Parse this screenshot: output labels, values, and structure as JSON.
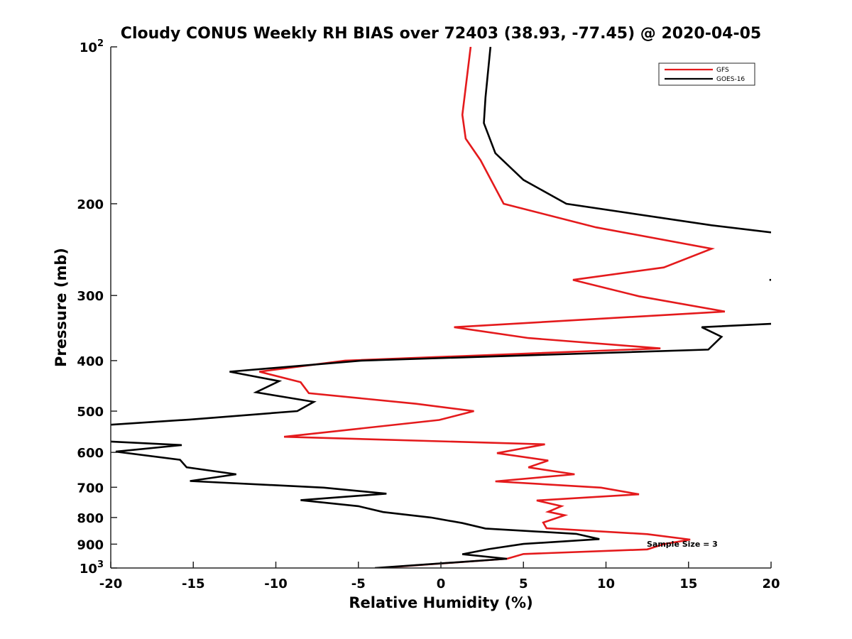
{
  "chart_data": {
    "type": "line",
    "title": "Cloudy CONUS Weekly RH BIAS over 72403 (38.93, -77.45) @ 2020-04-05",
    "xlabel": "Relative Humidity (%)",
    "ylabel": "Pressure (mb)",
    "xlim": [
      -20,
      20
    ],
    "ylim": [
      100,
      1000
    ],
    "yscale": "log",
    "y_reversed": true,
    "grid": false,
    "legend_position": "top-right",
    "x_ticks": [
      -20,
      -15,
      -10,
      -5,
      0,
      5,
      10,
      15,
      20
    ],
    "x_tick_labels": [
      "-20",
      "-15",
      "-10",
      "-5",
      "0",
      "5",
      "10",
      "15",
      "20"
    ],
    "y_ticks": [
      100,
      200,
      300,
      400,
      500,
      600,
      700,
      800,
      900,
      1000
    ],
    "y_tick_labels": [
      {
        "base": "10",
        "exp": "2"
      },
      {
        "base": "200",
        "exp": ""
      },
      {
        "base": "300",
        "exp": ""
      },
      {
        "base": "400",
        "exp": ""
      },
      {
        "base": "500",
        "exp": ""
      },
      {
        "base": "600",
        "exp": ""
      },
      {
        "base": "700",
        "exp": ""
      },
      {
        "base": "800",
        "exp": ""
      },
      {
        "base": "900",
        "exp": ""
      },
      {
        "base": "10",
        "exp": "3"
      }
    ],
    "annotation": "Sample Size = 3",
    "series": [
      {
        "name": "GFS",
        "color": "#e41a1c",
        "points": [
          [
            1.8,
            100
          ],
          [
            1.3,
            135
          ],
          [
            1.5,
            150
          ],
          [
            2.4,
            165
          ],
          [
            3.8,
            200
          ],
          [
            9.4,
            222
          ],
          [
            16.4,
            244
          ],
          [
            13.5,
            265
          ],
          [
            8.0,
            280
          ],
          [
            12.0,
            301
          ],
          [
            17.2,
            322
          ],
          [
            0.8,
            345
          ],
          [
            5.3,
            362
          ],
          [
            13.3,
            379
          ],
          [
            -5.8,
            400
          ],
          [
            -11.0,
            420
          ],
          [
            -8.5,
            440
          ],
          [
            -8.0,
            462
          ],
          [
            -1.5,
            484
          ],
          [
            2.0,
            500
          ],
          [
            -0.1,
            520
          ],
          [
            -9.5,
            560
          ],
          [
            6.3,
            579
          ],
          [
            3.4,
            602
          ],
          [
            6.5,
            622
          ],
          [
            5.3,
            641
          ],
          [
            8.1,
            661
          ],
          [
            3.3,
            682
          ],
          [
            9.7,
            701
          ],
          [
            12.0,
            722
          ],
          [
            5.8,
            742
          ],
          [
            7.3,
            761
          ],
          [
            6.5,
            780
          ],
          [
            7.5,
            792
          ],
          [
            6.2,
            818
          ],
          [
            6.4,
            839
          ],
          [
            12.5,
            861
          ],
          [
            15.1,
            882
          ],
          [
            13.5,
            900
          ],
          [
            12.5,
            921
          ],
          [
            5.0,
            940
          ],
          [
            4.0,
            960
          ],
          [
            -3.8,
            1000
          ]
        ]
      },
      {
        "name": "GOES-16",
        "color": "#000000",
        "segments": [
          [
            [
              3.0,
              100
            ],
            [
              2.7,
              125
            ],
            [
              2.6,
              140
            ],
            [
              3.3,
              160
            ],
            [
              5.0,
              180
            ],
            [
              7.6,
              200
            ],
            [
              16.4,
              220
            ],
            [
              20.0,
              227
            ]
          ],
          [
            [
              20.0,
              280
            ],
            [
              19.9,
              280
            ]
          ],
          [
            [
              20.0,
              340
            ],
            [
              15.8,
              345
            ],
            [
              17.0,
              360
            ],
            [
              16.2,
              381
            ],
            [
              -4.8,
              400
            ],
            [
              -12.8,
              420
            ],
            [
              -9.8,
              438
            ],
            [
              -11.2,
              460
            ],
            [
              -7.7,
              480
            ],
            [
              -8.7,
              500
            ],
            [
              -15.2,
              519
            ],
            [
              -20.0,
              531
            ]
          ],
          [
            [
              -20.0,
              572
            ],
            [
              -15.7,
              581
            ],
            [
              -19.7,
              598
            ],
            [
              -15.8,
              620
            ],
            [
              -15.4,
              641
            ],
            [
              -12.4,
              661
            ],
            [
              -15.2,
              681
            ],
            [
              -7.1,
              701
            ],
            [
              -3.3,
              720
            ],
            [
              -8.5,
              741
            ],
            [
              -5.0,
              761
            ],
            [
              -3.5,
              781
            ],
            [
              -0.6,
              800
            ],
            [
              1.3,
              820
            ],
            [
              2.7,
              840
            ],
            [
              8.2,
              860
            ],
            [
              9.6,
              880
            ],
            [
              5.0,
              899
            ],
            [
              2.9,
              920
            ],
            [
              1.3,
              941
            ],
            [
              4.0,
              960
            ],
            [
              -4.0,
              1000
            ]
          ]
        ]
      }
    ]
  }
}
